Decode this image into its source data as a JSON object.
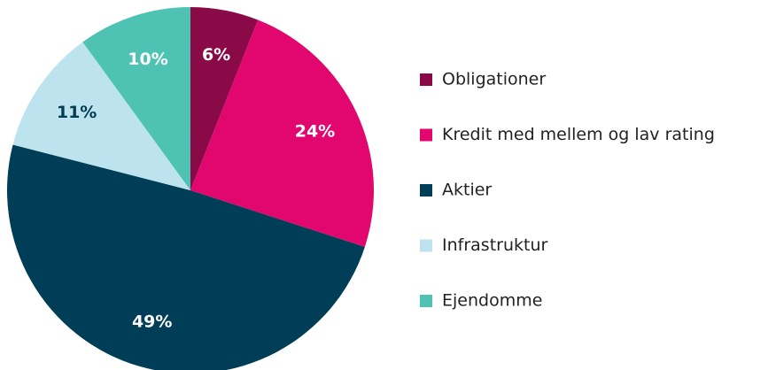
{
  "chart_data": {
    "type": "pie",
    "categories": [
      "Obligationer",
      "Kredit med mellem og lav rating",
      "Aktier",
      "Infrastruktur",
      "Ejendomme"
    ],
    "values": [
      6,
      24,
      49,
      11,
      10
    ],
    "value_labels": [
      "6%",
      "24%",
      "49%",
      "11%",
      "10%"
    ],
    "colors": [
      "#8a0a48",
      "#e2066f",
      "#003d56",
      "#bde4ee",
      "#4ec3b3"
    ],
    "start_angle": 0,
    "direction": "clockwise",
    "legend": "right"
  }
}
